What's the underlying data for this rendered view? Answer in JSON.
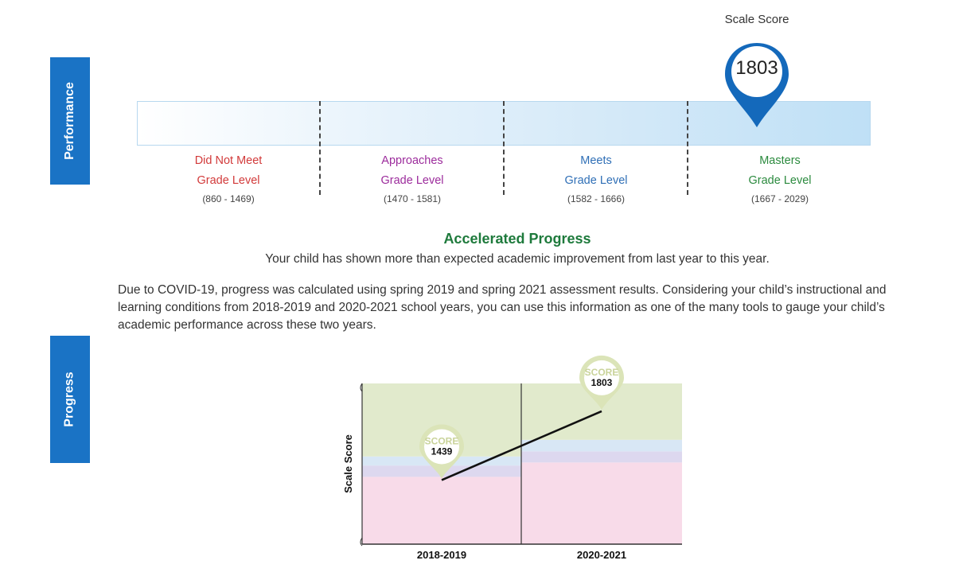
{
  "tabs": {
    "performance": "Performance",
    "progress": "Progress"
  },
  "performance": {
    "scale_score_label": "Scale Score",
    "marker_value": "1803",
    "levels": [
      {
        "line1": "Did Not Meet",
        "line2": "Grade Level",
        "range": "(860 - 1469)",
        "color": "#d23a3a"
      },
      {
        "line1": "Approaches",
        "line2": "Grade Level",
        "range": "(1470 - 1581)",
        "color": "#9c2c9c"
      },
      {
        "line1": "Meets",
        "line2": "Grade Level",
        "range": "(1582 - 1666)",
        "color": "#2f6fb6"
      },
      {
        "line1": "Masters",
        "line2": "Grade Level",
        "range": "(1667 - 2029)",
        "color": "#2b8a3e"
      }
    ],
    "scale": {
      "min": 860,
      "max": 2029,
      "score": 1803
    }
  },
  "progress": {
    "title": "Accelerated Progress",
    "description": "Your child has shown more than expected academic improvement from last year to this year.",
    "note": "Due to COVID-19, progress was calculated using spring 2019 and spring 2021 assessment results. Considering your child’s instructional and learning conditions from 2018-2019 and 2020-2021 school years, you can use this information as one of the many tools to gauge your child’s academic performance across these two years."
  },
  "chart_data": {
    "type": "line",
    "ylabel": "Scale Score",
    "categories": [
      "2018-2019",
      "2020-2021"
    ],
    "series": [
      {
        "values": [
          1439,
          1803
        ]
      }
    ],
    "marker_label": "SCORE",
    "point_labels": [
      "1439",
      "1803"
    ],
    "ylim": [
      1100,
      1950
    ],
    "bands": [
      {
        "period": "2018-2019",
        "ranges": [
          [
            1100,
            1456
          ],
          [
            1456,
            1516
          ],
          [
            1516,
            1564
          ],
          [
            1564,
            1950
          ]
        ]
      },
      {
        "period": "2020-2021",
        "ranges": [
          [
            1100,
            1532
          ],
          [
            1532,
            1591
          ],
          [
            1591,
            1652
          ],
          [
            1652,
            1950
          ]
        ]
      }
    ],
    "band_colors": [
      "#f8dbe9",
      "#ddd8ef",
      "#d8e7f5",
      "#e1eacc"
    ]
  }
}
